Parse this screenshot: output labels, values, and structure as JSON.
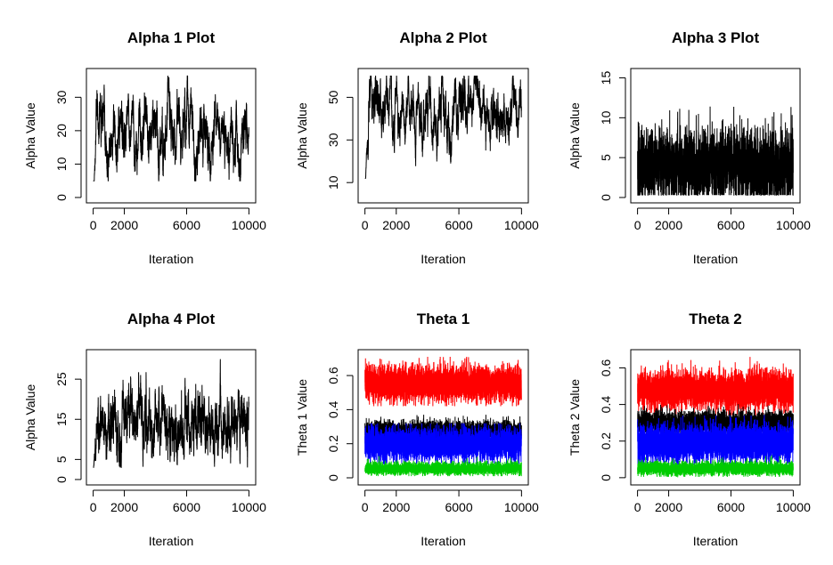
{
  "chart_data": [
    {
      "type": "line",
      "title": "Alpha 1 Plot",
      "xlabel": "Iteration",
      "ylabel": "Alpha Value",
      "xlim": [
        0,
        10000
      ],
      "ylim": [
        0,
        37
      ],
      "xticks": [
        0,
        2000,
        6000,
        10000
      ],
      "yticks": [
        0,
        10,
        20,
        30
      ],
      "n_points": 10000,
      "series": [
        {
          "color": "#000000",
          "start": 1.5,
          "mean": 20,
          "sd": 5.5,
          "min": 5,
          "max": 36.5,
          "burn_in": 250,
          "phi": 0.985,
          "seed": 11
        }
      ]
    },
    {
      "type": "line",
      "title": "Alpha 2 Plot",
      "xlabel": "Iteration",
      "ylabel": "Alpha Value",
      "xlim": [
        0,
        10000
      ],
      "ylim": [
        3,
        61
      ],
      "xticks": [
        0,
        2000,
        6000,
        10000
      ],
      "yticks": [
        10,
        30,
        50
      ],
      "n_points": 10000,
      "series": [
        {
          "color": "#000000",
          "start": 4,
          "mean": 42,
          "sd": 8,
          "min": 12,
          "max": 60,
          "burn_in": 250,
          "phi": 0.985,
          "seed": 23
        }
      ]
    },
    {
      "type": "line",
      "title": "Alpha 3 Plot",
      "xlabel": "Iteration",
      "ylabel": "Alpha Value",
      "xlim": [
        0,
        10000
      ],
      "ylim": [
        0,
        15.5
      ],
      "xticks": [
        0,
        2000,
        6000,
        10000
      ],
      "yticks": [
        0,
        5,
        10,
        15
      ],
      "n_points": 10000,
      "series": [
        {
          "color": "#000000",
          "start": 3,
          "mean": 4,
          "sd": 2.2,
          "min": 0.3,
          "max": 15.3,
          "burn_in": 0,
          "phi": 0.7,
          "seed": 37
        }
      ]
    },
    {
      "type": "line",
      "title": "Alpha 4 Plot",
      "xlabel": "Iteration",
      "ylabel": "Alpha Value",
      "xlim": [
        0,
        10000
      ],
      "ylim": [
        0,
        31
      ],
      "xticks": [
        0,
        2000,
        6000,
        10000
      ],
      "yticks": [
        0,
        5,
        15,
        25
      ],
      "n_points": 10000,
      "series": [
        {
          "color": "#000000",
          "start": 2,
          "mean": 14,
          "sd": 4,
          "min": 3,
          "max": 30.5,
          "burn_in": 250,
          "phi": 0.97,
          "seed": 41
        }
      ]
    },
    {
      "type": "line",
      "title": "Theta 1",
      "xlabel": "Iteration",
      "ylabel": "Theta 1 Value",
      "xlim": [
        0,
        10000
      ],
      "ylim": [
        -0.01,
        0.72
      ],
      "xticks": [
        0,
        2000,
        6000,
        10000
      ],
      "yticks": [
        0.0,
        0.2,
        0.4,
        0.6
      ],
      "n_points": 10000,
      "series": [
        {
          "color": "#ff0000",
          "start": 0.55,
          "mean": 0.55,
          "sd": 0.05,
          "min": 0.42,
          "max": 0.71,
          "burn_in": 0,
          "phi": 0.3,
          "seed": 51
        },
        {
          "color": "#000000",
          "start": 0.27,
          "mean": 0.27,
          "sd": 0.03,
          "min": 0.17,
          "max": 0.37,
          "burn_in": 0,
          "phi": 0.3,
          "seed": 52
        },
        {
          "color": "#0000ff",
          "start": 0.2,
          "mean": 0.2,
          "sd": 0.045,
          "min": 0.08,
          "max": 0.32,
          "burn_in": 0,
          "phi": 0.3,
          "seed": 53
        },
        {
          "color": "#00cc00",
          "start": 0.055,
          "mean": 0.055,
          "sd": 0.018,
          "min": 0.01,
          "max": 0.13,
          "burn_in": 0,
          "phi": 0.3,
          "seed": 54
        }
      ]
    },
    {
      "type": "line",
      "title": "Theta 2",
      "xlabel": "Iteration",
      "ylabel": "Theta 2 Value",
      "xlim": [
        0,
        10000
      ],
      "ylim": [
        -0.01,
        0.67
      ],
      "xticks": [
        0,
        2000,
        6000,
        10000
      ],
      "yticks": [
        0.0,
        0.2,
        0.4,
        0.6
      ],
      "n_points": 10000,
      "series": [
        {
          "color": "#ff0000",
          "start": 0.48,
          "mean": 0.48,
          "sd": 0.05,
          "min": 0.34,
          "max": 0.66,
          "burn_in": 0,
          "phi": 0.3,
          "seed": 61
        },
        {
          "color": "#000000",
          "start": 0.3,
          "mean": 0.3,
          "sd": 0.03,
          "min": 0.2,
          "max": 0.42,
          "burn_in": 0,
          "phi": 0.3,
          "seed": 62
        },
        {
          "color": "#0000ff",
          "start": 0.19,
          "mean": 0.19,
          "sd": 0.05,
          "min": 0.07,
          "max": 0.34,
          "burn_in": 0,
          "phi": 0.3,
          "seed": 63
        },
        {
          "color": "#00cc00",
          "start": 0.05,
          "mean": 0.05,
          "sd": 0.018,
          "min": 0.005,
          "max": 0.13,
          "burn_in": 0,
          "phi": 0.3,
          "seed": 64
        }
      ]
    }
  ]
}
